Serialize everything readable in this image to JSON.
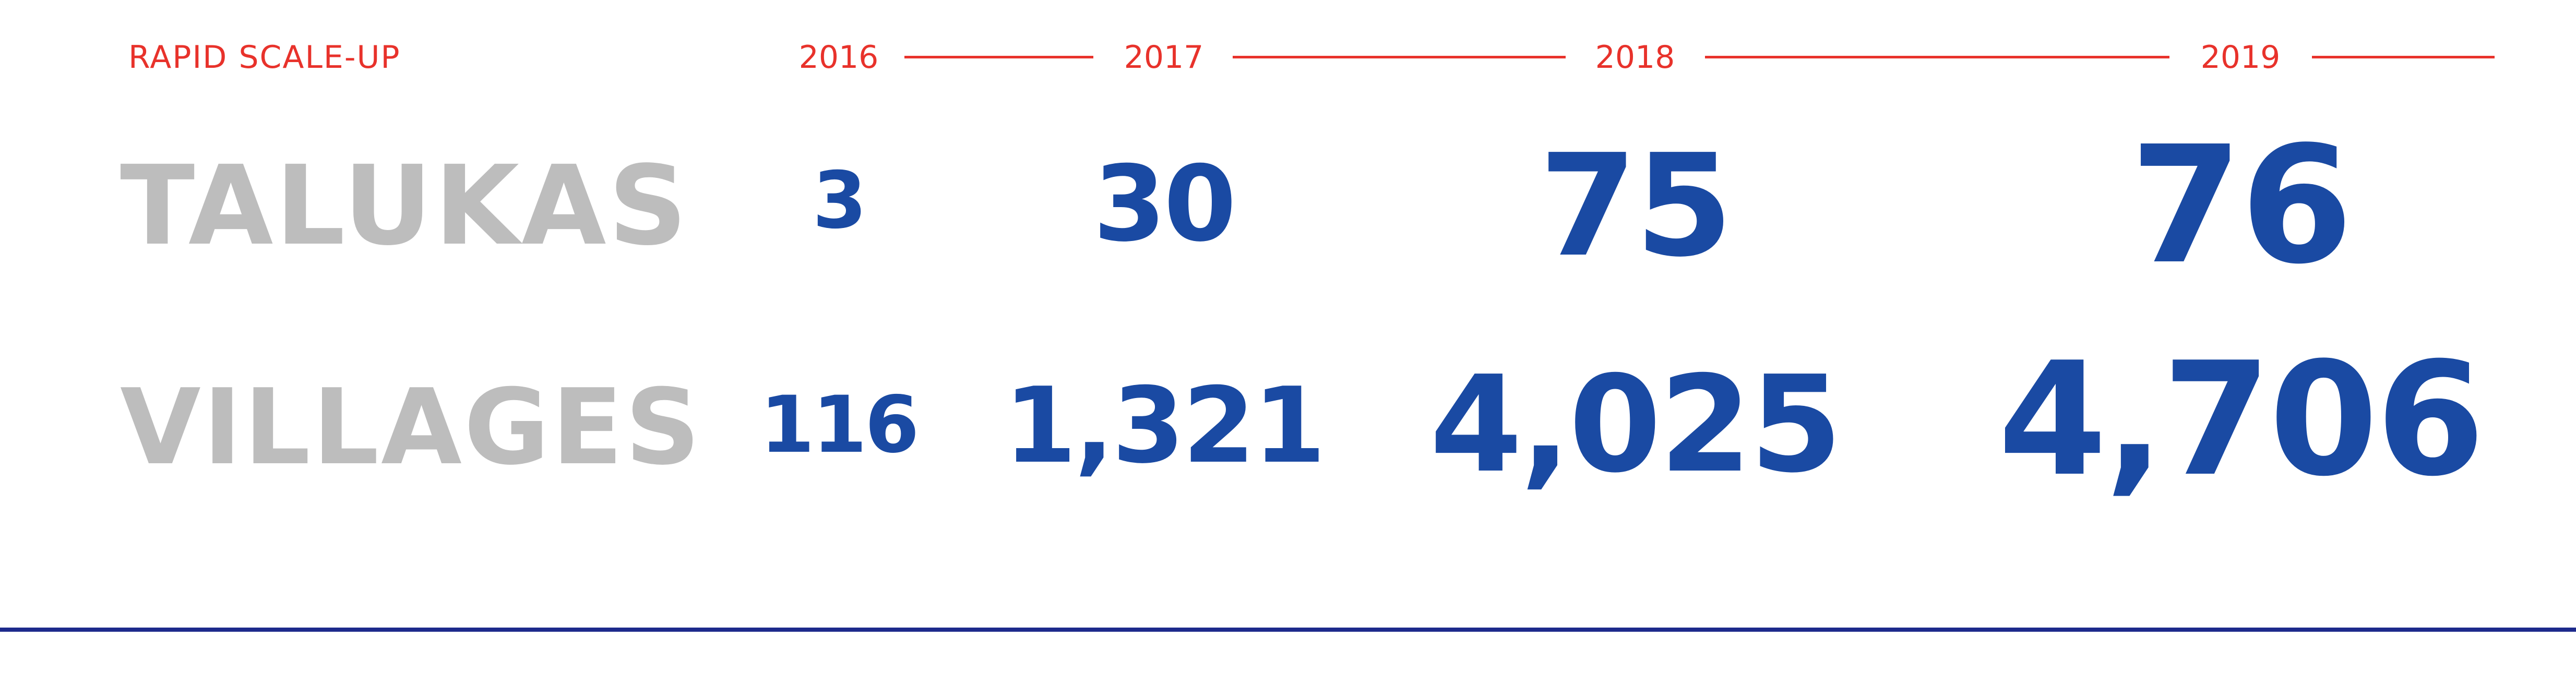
{
  "header": {
    "title": "RAPID SCALE-UP",
    "years": [
      "2016",
      "2017",
      "2018",
      "2019"
    ]
  },
  "rows": [
    {
      "label": "TALUKAS",
      "values": [
        "3",
        "30",
        "75",
        "76"
      ]
    },
    {
      "label": "VILLAGES",
      "values": [
        "116",
        "1,321",
        "4,025",
        "4,706"
      ]
    }
  ],
  "colors": {
    "accent": "#e8322b",
    "number": "#1a4aa3",
    "label": "#bdbdbd",
    "rule": "#1d2a8c"
  }
}
